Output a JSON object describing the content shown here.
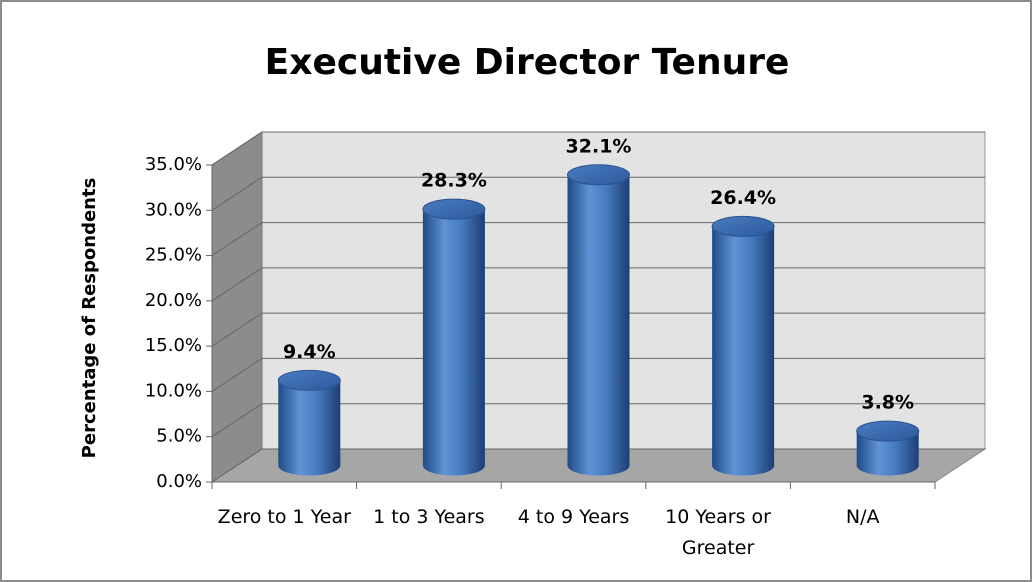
{
  "chart_data": {
    "type": "bar",
    "title": "Executive Director Tenure",
    "y_label": "Percentage of Respondents",
    "categories": [
      "Zero to 1 Year",
      "1 to 3 Years",
      "4 to 9 Years",
      "10 Years or Greater",
      "N/A"
    ],
    "values": [
      9.4,
      28.3,
      32.1,
      26.4,
      3.8
    ],
    "value_labels": [
      "9.4%",
      "28.3%",
      "32.1%",
      "26.4%",
      "3.8%"
    ],
    "color": "#4f81bd",
    "ylim": [
      0,
      35
    ],
    "yticks": [
      {
        "value": 0,
        "label": "0.0%"
      },
      {
        "value": 5,
        "label": "5.0%"
      },
      {
        "value": 10,
        "label": "10.0%"
      },
      {
        "value": 15,
        "label": "15.0%"
      },
      {
        "value": 20,
        "label": "20.0%"
      },
      {
        "value": 25,
        "label": "25.0%"
      },
      {
        "value": 30,
        "label": "30.0%"
      },
      {
        "value": 35,
        "label": "35.0%"
      }
    ],
    "grid": true
  }
}
